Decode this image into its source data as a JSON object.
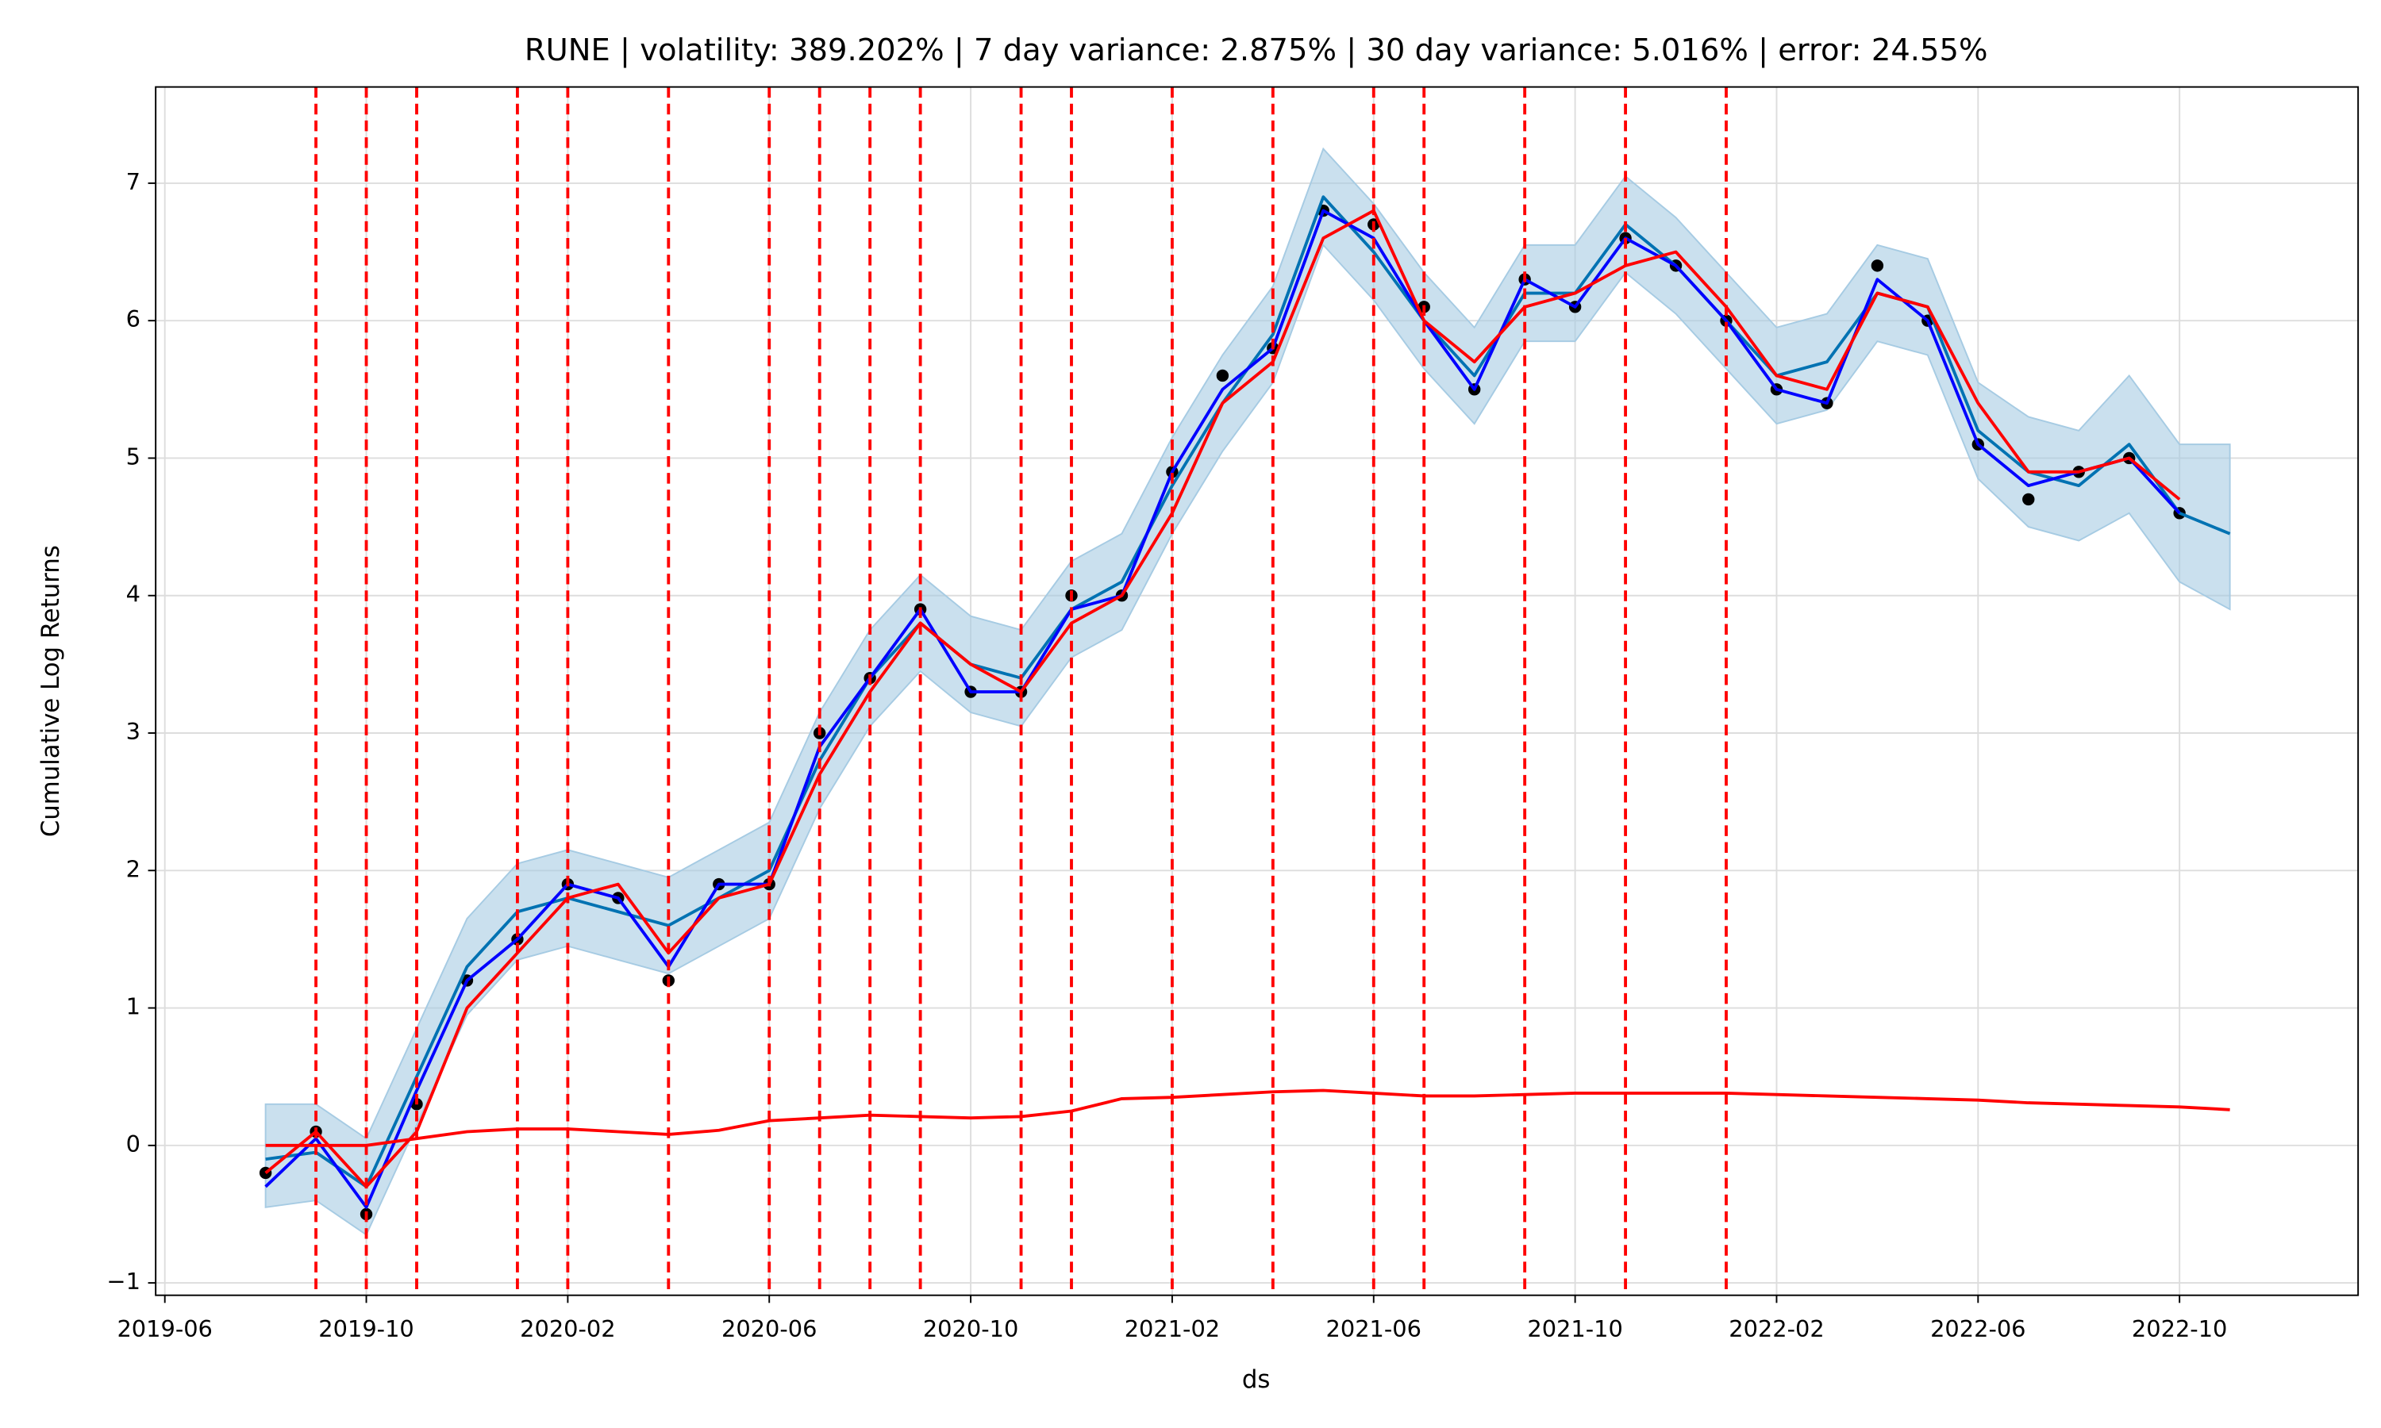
{
  "chart_data": {
    "type": "line",
    "title": "RUNE | volatility: 389.202% | 7 day variance: 2.875% | 30 day variance: 5.016% | error: 24.55%",
    "xlabel": "ds",
    "ylabel": "Cumulative Log Returns",
    "x": [
      "2019-08",
      "2019-09",
      "2019-10",
      "2019-11",
      "2019-12",
      "2020-01",
      "2020-02",
      "2020-03",
      "2020-04",
      "2020-05",
      "2020-06",
      "2020-07",
      "2020-08",
      "2020-09",
      "2020-10",
      "2020-11",
      "2020-12",
      "2021-01",
      "2021-02",
      "2021-03",
      "2021-04",
      "2021-05",
      "2021-06",
      "2021-07",
      "2021-08",
      "2021-09",
      "2021-10",
      "2021-11",
      "2021-12",
      "2022-01",
      "2022-02",
      "2022-03",
      "2022-04",
      "2022-05",
      "2022-06",
      "2022-07",
      "2022-08",
      "2022-09",
      "2022-10",
      "2022-11"
    ],
    "series": [
      {
        "type": "band",
        "color": "#a6cbe3",
        "lower": [
          -0.45,
          -0.4,
          -0.65,
          0.15,
          0.95,
          1.35,
          1.45,
          1.35,
          1.25,
          1.45,
          1.65,
          2.45,
          3.05,
          3.45,
          3.15,
          3.05,
          3.55,
          3.75,
          4.45,
          5.05,
          5.55,
          6.55,
          6.15,
          5.65,
          5.25,
          5.85,
          5.85,
          6.35,
          6.05,
          5.65,
          5.25,
          5.35,
          5.85,
          5.75,
          4.85,
          4.5,
          4.4,
          4.6,
          4.1,
          3.9
        ],
        "upper": [
          0.3,
          0.3,
          0.05,
          0.85,
          1.65,
          2.05,
          2.15,
          2.05,
          1.95,
          2.15,
          2.35,
          3.15,
          3.75,
          4.15,
          3.85,
          3.75,
          4.25,
          4.45,
          5.15,
          5.75,
          6.25,
          7.25,
          6.85,
          6.35,
          5.95,
          6.55,
          6.55,
          7.05,
          6.75,
          6.35,
          5.95,
          6.05,
          6.55,
          6.45,
          5.55,
          5.3,
          5.2,
          5.6,
          5.1,
          5.1
        ]
      },
      {
        "type": "scatter",
        "color": "#000000",
        "values": [
          -0.2,
          0.1,
          -0.5,
          0.3,
          1.2,
          1.5,
          1.9,
          1.8,
          1.2,
          1.9,
          1.9,
          3.0,
          3.4,
          3.9,
          3.3,
          3.3,
          4.0,
          4.0,
          4.9,
          5.6,
          5.8,
          6.8,
          6.7,
          6.1,
          5.5,
          6.3,
          6.1,
          6.6,
          6.4,
          6.0,
          5.5,
          5.4,
          6.4,
          6.0,
          5.1,
          4.7,
          4.9,
          5.0,
          4.6,
          null
        ]
      },
      {
        "type": "line",
        "color": "#0072b2",
        "values": [
          -0.1,
          -0.05,
          -0.3,
          0.5,
          1.3,
          1.7,
          1.8,
          1.7,
          1.6,
          1.8,
          2.0,
          2.8,
          3.4,
          3.8,
          3.5,
          3.4,
          3.9,
          4.1,
          4.8,
          5.4,
          5.9,
          6.9,
          6.5,
          6.0,
          5.6,
          6.2,
          6.2,
          6.7,
          6.4,
          6.0,
          5.6,
          5.7,
          6.2,
          6.1,
          5.2,
          4.9,
          4.8,
          5.1,
          4.6,
          4.45
        ]
      },
      {
        "type": "line",
        "color": "#0000ff",
        "values": [
          -0.3,
          0.05,
          -0.45,
          0.4,
          1.2,
          1.5,
          1.9,
          1.8,
          1.3,
          1.9,
          1.9,
          2.9,
          3.4,
          3.9,
          3.3,
          3.3,
          3.9,
          4.0,
          4.9,
          5.5,
          5.8,
          6.8,
          6.6,
          6.0,
          5.5,
          6.3,
          6.1,
          6.6,
          6.4,
          6.0,
          5.5,
          5.4,
          6.3,
          6.0,
          5.1,
          4.8,
          4.9,
          5.0,
          4.6,
          null
        ]
      },
      {
        "type": "line",
        "color": "#ff0000",
        "values": [
          -0.2,
          0.1,
          -0.3,
          0.1,
          1.0,
          1.4,
          1.8,
          1.9,
          1.4,
          1.8,
          1.9,
          2.7,
          3.3,
          3.8,
          3.5,
          3.3,
          3.8,
          4.0,
          4.6,
          5.4,
          5.7,
          6.6,
          6.8,
          6.0,
          5.7,
          6.1,
          6.2,
          6.4,
          6.5,
          6.1,
          5.6,
          5.5,
          6.2,
          6.1,
          5.4,
          4.9,
          4.9,
          5.0,
          4.7,
          null
        ]
      },
      {
        "type": "line",
        "color": "#ff0000",
        "values": [
          0,
          0,
          0,
          0.05,
          0.1,
          0.12,
          0.12,
          0.1,
          0.08,
          0.11,
          0.18,
          0.2,
          0.22,
          0.21,
          0.2,
          0.21,
          0.25,
          0.34,
          0.35,
          0.37,
          0.39,
          0.4,
          0.38,
          0.36,
          0.36,
          0.37,
          0.38,
          0.38,
          0.38,
          0.38,
          0.37,
          0.36,
          0.35,
          0.34,
          0.33,
          0.31,
          0.3,
          0.29,
          0.28,
          0.26
        ]
      }
    ],
    "changepoints": [
      "2019-09",
      "2019-10",
      "2019-11",
      "2020-01",
      "2020-02",
      "2020-04",
      "2020-06",
      "2020-07",
      "2020-08",
      "2020-09",
      "2020-11",
      "2020-12",
      "2021-02",
      "2021-04",
      "2021-06",
      "2021-07",
      "2021-09",
      "2021-11",
      "2022-01"
    ],
    "changepoint_color": "#ff0000",
    "xlim": [
      "2019-06",
      "2023-01"
    ],
    "xticks": [
      "2019-06",
      "2019-10",
      "2020-02",
      "2020-06",
      "2020-10",
      "2021-02",
      "2021-06",
      "2021-10",
      "2022-02",
      "2022-06",
      "2022-10"
    ],
    "ylim": [
      -1.09,
      7.7
    ],
    "yticks": [
      {
        "value": -1,
        "label": "−1"
      },
      0,
      1,
      2,
      3,
      4,
      5,
      6,
      7
    ],
    "grid": true
  }
}
